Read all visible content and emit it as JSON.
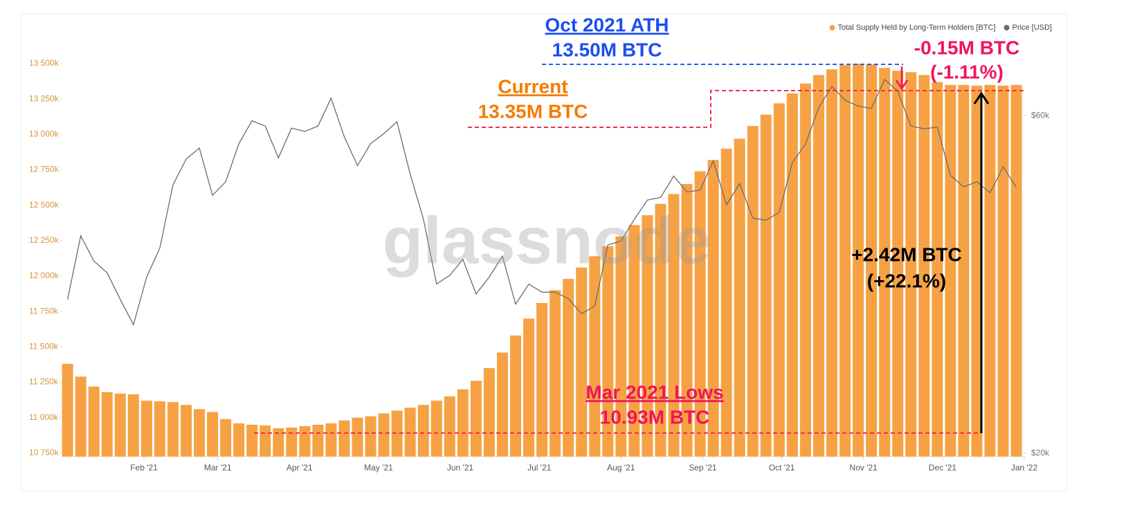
{
  "chart_data": {
    "type": "combo",
    "legend_position": "top-right",
    "watermark": "glassnode",
    "x": [
      2,
      7,
      12,
      17,
      22,
      27,
      32,
      37,
      42,
      47,
      52,
      57,
      62,
      67,
      72,
      77,
      82,
      87,
      92,
      97,
      102,
      107,
      112,
      117,
      122,
      127,
      132,
      137,
      142,
      147,
      152,
      157,
      162,
      167,
      172,
      177,
      182,
      187,
      192,
      197,
      202,
      207,
      212,
      217,
      222,
      227,
      232,
      237,
      242,
      247,
      252,
      257,
      262,
      267,
      272,
      277,
      282,
      287,
      292,
      297,
      302,
      307,
      312,
      317,
      322,
      327,
      332,
      337,
      342,
      347,
      352,
      357,
      362
    ],
    "xlim": [
      0,
      365
    ],
    "xticks": [
      {
        "value": 31,
        "label": "Feb '21"
      },
      {
        "value": 59,
        "label": "Mar '21"
      },
      {
        "value": 90,
        "label": "Apr '21"
      },
      {
        "value": 120,
        "label": "May '21"
      },
      {
        "value": 151,
        "label": "Jun '21"
      },
      {
        "value": 181,
        "label": "Jul '21"
      },
      {
        "value": 212,
        "label": "Aug '21"
      },
      {
        "value": 243,
        "label": "Sep '21"
      },
      {
        "value": 273,
        "label": "Oct '21"
      },
      {
        "value": 304,
        "label": "Nov '21"
      },
      {
        "value": 334,
        "label": "Dec '21"
      },
      {
        "value": 365,
        "label": "Jan '22"
      }
    ],
    "ylim": [
      10725,
      13725
    ],
    "yticks": [
      {
        "value": 10750,
        "label": "10 750k"
      },
      {
        "value": 11000,
        "label": "11 000k"
      },
      {
        "value": 11250,
        "label": "11 250k"
      },
      {
        "value": 11500,
        "label": "11 500k"
      },
      {
        "value": 11750,
        "label": "11 750k"
      },
      {
        "value": 12000,
        "label": "12 000k"
      },
      {
        "value": 12250,
        "label": "12 250k"
      },
      {
        "value": 12500,
        "label": "12 500k"
      },
      {
        "value": 12750,
        "label": "12 750k"
      },
      {
        "value": 13000,
        "label": "13 000k"
      },
      {
        "value": 13250,
        "label": "13 250k"
      },
      {
        "value": 13500,
        "label": "13 500k"
      }
    ],
    "y2lim": [
      19800,
      78800
    ],
    "y2log": true,
    "y2ticks": [
      {
        "value": 20000,
        "label": "$20k"
      },
      {
        "value": 60000,
        "label": "$60k"
      }
    ],
    "series": [
      {
        "name": "Total Supply Held by Long-Term Holders [BTC]",
        "color": "#f6a244",
        "type": "bar",
        "values": [
          11380,
          11290,
          11220,
          11180,
          11170,
          11165,
          11120,
          11115,
          11110,
          11090,
          11060,
          11040,
          10990,
          10960,
          10950,
          10945,
          10925,
          10930,
          10940,
          10950,
          10960,
          10980,
          11000,
          11010,
          11030,
          11050,
          11070,
          11090,
          11120,
          11150,
          11200,
          11260,
          11350,
          11460,
          11580,
          11700,
          11810,
          11900,
          11980,
          12060,
          12140,
          12210,
          12280,
          12360,
          12430,
          12510,
          12580,
          12650,
          12740,
          12820,
          12900,
          12970,
          13060,
          13140,
          13220,
          13290,
          13360,
          13420,
          13460,
          13490,
          13500,
          13495,
          13470,
          13450,
          13440,
          13420,
          13370,
          13350,
          13350,
          13345,
          13350,
          13345,
          13350
        ]
      },
      {
        "name": "Price [USD]",
        "color": "#6b6b6b",
        "type": "line",
        "axis": "y2",
        "values": [
          33000,
          40600,
          37400,
          36000,
          33000,
          30400,
          35500,
          39000,
          47900,
          52100,
          54000,
          46300,
          48400,
          54800,
          59000,
          58000,
          52300,
          57600,
          57000,
          58000,
          63500,
          56000,
          51000,
          54800,
          56600,
          58800,
          49600,
          42900,
          34700,
          35700,
          37600,
          33600,
          35500,
          38000,
          32500,
          34700,
          33800,
          33800,
          33100,
          31500,
          32300,
          39400,
          39900,
          42800,
          45600,
          46000,
          49300,
          46800,
          47100,
          51800,
          44900,
          48100,
          43000,
          42700,
          43800,
          51500,
          54700,
          61600,
          66000,
          63100,
          61900,
          61400,
          67500,
          65000,
          58000,
          57500,
          57800,
          49400,
          47600,
          48400,
          46700,
          50800,
          47500
        ]
      }
    ],
    "annotations": [
      "Oct 2021 ATH",
      "13.50M BTC",
      "Current",
      "13.35M BTC",
      "-0.15M BTC",
      "(-1.11%)",
      "+2.42M BTC",
      "(+22.1%)",
      "Mar 2021 Lows",
      "10.93M BTC"
    ]
  }
}
